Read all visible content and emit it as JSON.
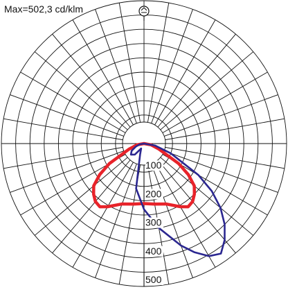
{
  "chart_data": {
    "type": "polar",
    "title": "Max=502,3 cd/klm",
    "unit": "cd/klm",
    "rlim": [
      0,
      500
    ],
    "radial_ticks": [
      100,
      200,
      300,
      400,
      500
    ],
    "radial_tick_labels": [
      "100",
      "200",
      "300",
      "400",
      "500"
    ],
    "angle_step_deg": 10,
    "grid": true,
    "colors": {
      "grid": "#111111",
      "C0_C180": "#e8232a",
      "C90_C270": "#2b2790"
    },
    "icon": "luminaire-symbol-icon",
    "series": [
      {
        "key": "C0_C180",
        "points": [
          {
            "angle": -90,
            "value": 0
          },
          {
            "angle": -80,
            "value": 25
          },
          {
            "angle": -70,
            "value": 55
          },
          {
            "angle": -60,
            "value": 140
          },
          {
            "angle": -55,
            "value": 190
          },
          {
            "angle": -50,
            "value": 230
          },
          {
            "angle": -45,
            "value": 250
          },
          {
            "angle": -40,
            "value": 265
          },
          {
            "angle": -35,
            "value": 270
          },
          {
            "angle": -30,
            "value": 255
          },
          {
            "angle": -20,
            "value": 225
          },
          {
            "angle": -10,
            "value": 215
          },
          {
            "angle": 0,
            "value": 210
          },
          {
            "angle": 10,
            "value": 215
          },
          {
            "angle": 20,
            "value": 225
          },
          {
            "angle": 30,
            "value": 255
          },
          {
            "angle": 35,
            "value": 270
          },
          {
            "angle": 40,
            "value": 265
          },
          {
            "angle": 45,
            "value": 250
          },
          {
            "angle": 50,
            "value": 230
          },
          {
            "angle": 55,
            "value": 190
          },
          {
            "angle": 60,
            "value": 140
          },
          {
            "angle": 70,
            "value": 55
          },
          {
            "angle": 80,
            "value": 25
          },
          {
            "angle": 90,
            "value": 0
          }
        ]
      },
      {
        "key": "C90_C270",
        "points": [
          {
            "angle": -90,
            "value": 0
          },
          {
            "angle": -80,
            "value": 15
          },
          {
            "angle": -70,
            "value": 30
          },
          {
            "angle": -60,
            "value": 50
          },
          {
            "angle": -50,
            "value": 60
          },
          {
            "angle": -40,
            "value": 50
          },
          {
            "angle": -30,
            "value": 20
          },
          {
            "angle": -20,
            "value": 40
          },
          {
            "angle": -10,
            "value": 160
          },
          {
            "angle": 0,
            "value": 230
          },
          {
            "angle": 10,
            "value": 300
          },
          {
            "angle": 20,
            "value": 380
          },
          {
            "angle": 25,
            "value": 420
          },
          {
            "angle": 30,
            "value": 455
          },
          {
            "angle": 35,
            "value": 470
          },
          {
            "angle": 40,
            "value": 440
          },
          {
            "angle": 45,
            "value": 400
          },
          {
            "angle": 50,
            "value": 350
          },
          {
            "angle": 55,
            "value": 290
          },
          {
            "angle": 60,
            "value": 220
          },
          {
            "angle": 70,
            "value": 100
          },
          {
            "angle": 80,
            "value": 40
          },
          {
            "angle": 90,
            "value": 0
          }
        ]
      }
    ]
  }
}
